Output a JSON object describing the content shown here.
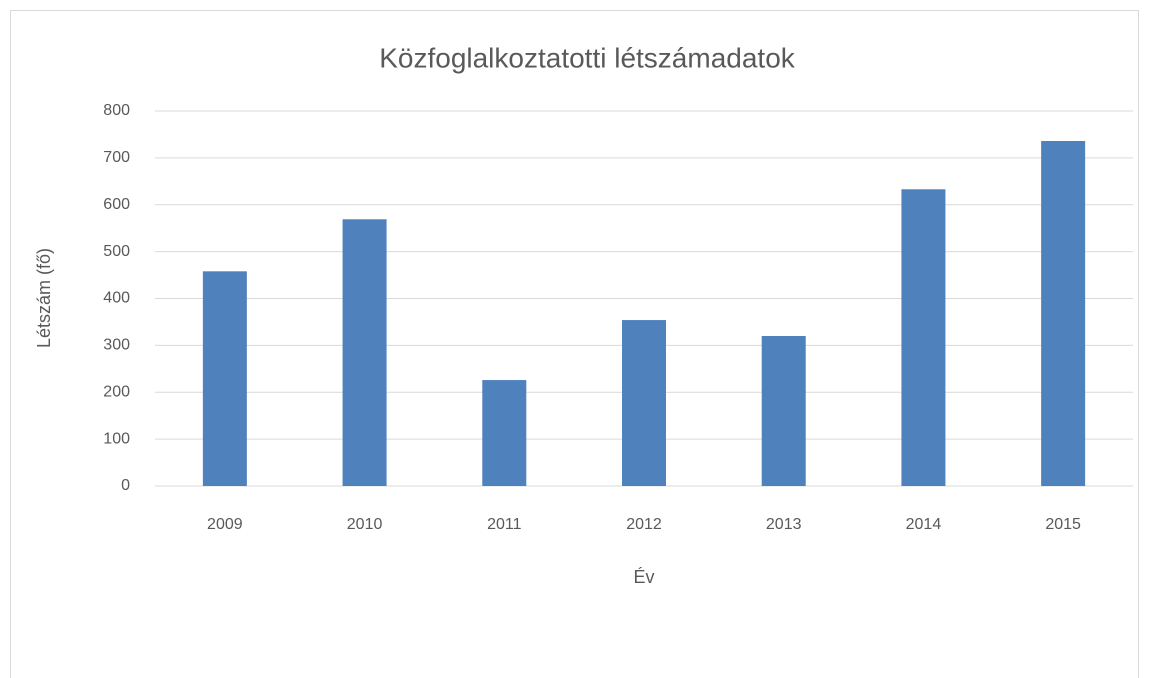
{
  "chart_data": {
    "type": "bar",
    "title": "Közfoglalkoztatotti létszámadatok",
    "x_label": "Év",
    "y_label": "Létszám (fő)",
    "categories": [
      "2009",
      "2010",
      "2011",
      "2012",
      "2013",
      "2014",
      "2015"
    ],
    "values": [
      458,
      569,
      226,
      354,
      320,
      633,
      736
    ],
    "color": "#4f81bd",
    "ylim": [
      0,
      800
    ],
    "yticks": [
      0,
      100,
      200,
      300,
      400,
      500,
      600,
      700,
      800
    ],
    "grid": true
  }
}
